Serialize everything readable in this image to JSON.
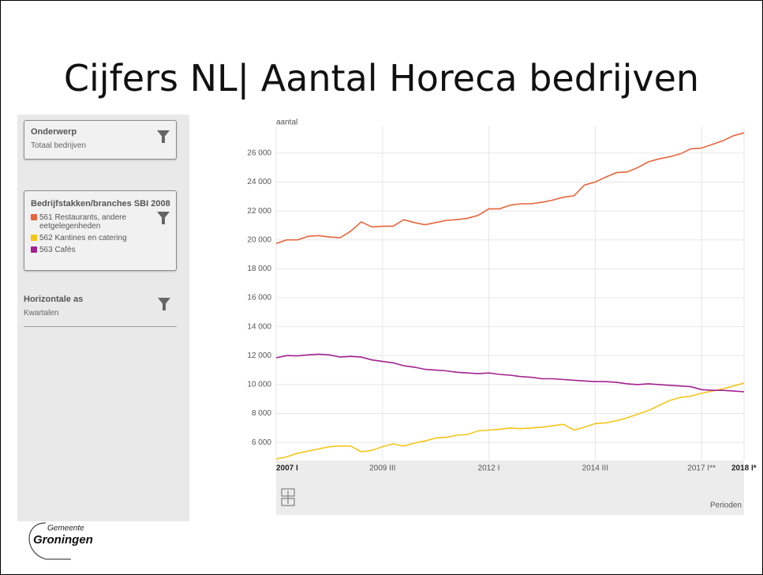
{
  "slide_title": "Cijfers NL| Aantal Horeca bedrijven",
  "filters": {
    "subject": {
      "label": "Onderwerp",
      "value": "Totaal bedrijven"
    },
    "branches": {
      "label": "Bedrijfstakken/branches SBI 2008"
    },
    "horizontal": {
      "label": "Horizontale as",
      "value": "Kwartalen"
    }
  },
  "logo": {
    "line1": "Gemeente",
    "line2": "Groningen"
  },
  "chart_data": {
    "type": "line",
    "ylabel": "aantal",
    "xlabel": "Perioden",
    "categories": [
      "2007 I",
      null,
      null,
      null,
      null,
      null,
      null,
      null,
      null,
      null,
      "2009 III",
      null,
      null,
      null,
      null,
      null,
      null,
      null,
      null,
      null,
      "2012 I",
      null,
      null,
      null,
      null,
      null,
      null,
      null,
      null,
      null,
      "2014 III",
      null,
      null,
      null,
      null,
      null,
      null,
      null,
      null,
      null,
      "2017 I**",
      null,
      null,
      null,
      "2018 I*"
    ],
    "bold_categories": [
      "2007 I",
      "2018 I*"
    ],
    "ylim": [
      4750,
      27850
    ],
    "yticks": [
      {
        "value": 6000,
        "label": "6 000"
      },
      {
        "value": 8000,
        "label": "8 000"
      },
      {
        "value": 10000,
        "label": "10 000"
      },
      {
        "value": 12000,
        "label": "12 000"
      },
      {
        "value": 14000,
        "label": "14 000"
      },
      {
        "value": 16000,
        "label": "16 000"
      },
      {
        "value": 18000,
        "label": "18 000"
      },
      {
        "value": 20000,
        "label": "20 000"
      },
      {
        "value": 22000,
        "label": "22 000"
      },
      {
        "value": 24000,
        "label": "24 000"
      },
      {
        "value": 26000,
        "label": "26 000"
      }
    ],
    "grid": true,
    "series": [
      {
        "name": "561 Restaurants, andere eetgelegenheden",
        "color": "#e8643c",
        "values": [
          19750,
          20000,
          20000,
          20250,
          20300,
          20200,
          20150,
          20600,
          21250,
          20900,
          20950,
          20950,
          21400,
          21200,
          21050,
          21200,
          21350,
          21400,
          21500,
          21700,
          22150,
          22150,
          22400,
          22500,
          22500,
          22600,
          22750,
          22950,
          23050,
          23800,
          24000,
          24350,
          24650,
          24700,
          25000,
          25400,
          25600,
          25750,
          25950,
          26300,
          26350,
          26600,
          26850,
          27200,
          27400
        ]
      },
      {
        "name": "562 Kantines en catering",
        "color": "#f5c518",
        "values": [
          4850,
          5000,
          5250,
          5400,
          5550,
          5700,
          5750,
          5750,
          5350,
          5450,
          5700,
          5900,
          5750,
          5950,
          6100,
          6300,
          6350,
          6500,
          6550,
          6800,
          6850,
          6900,
          7000,
          6950,
          7000,
          7050,
          7150,
          7250,
          6850,
          7050,
          7300,
          7350,
          7500,
          7700,
          7950,
          8200,
          8550,
          8900,
          9100,
          9200,
          9400,
          9550,
          9700,
          9900,
          10100
        ]
      },
      {
        "name": "563 Cafés",
        "color": "#a3228f",
        "values": [
          11850,
          12000,
          11980,
          12050,
          12100,
          12050,
          11900,
          11950,
          11900,
          11700,
          11600,
          11500,
          11300,
          11200,
          11050,
          11000,
          10950,
          10850,
          10800,
          10750,
          10800,
          10700,
          10650,
          10550,
          10500,
          10400,
          10400,
          10350,
          10300,
          10250,
          10200,
          10200,
          10150,
          10050,
          10000,
          10050,
          10000,
          9950,
          9900,
          9850,
          9650,
          9600,
          9600,
          9550,
          9500
        ]
      }
    ]
  }
}
